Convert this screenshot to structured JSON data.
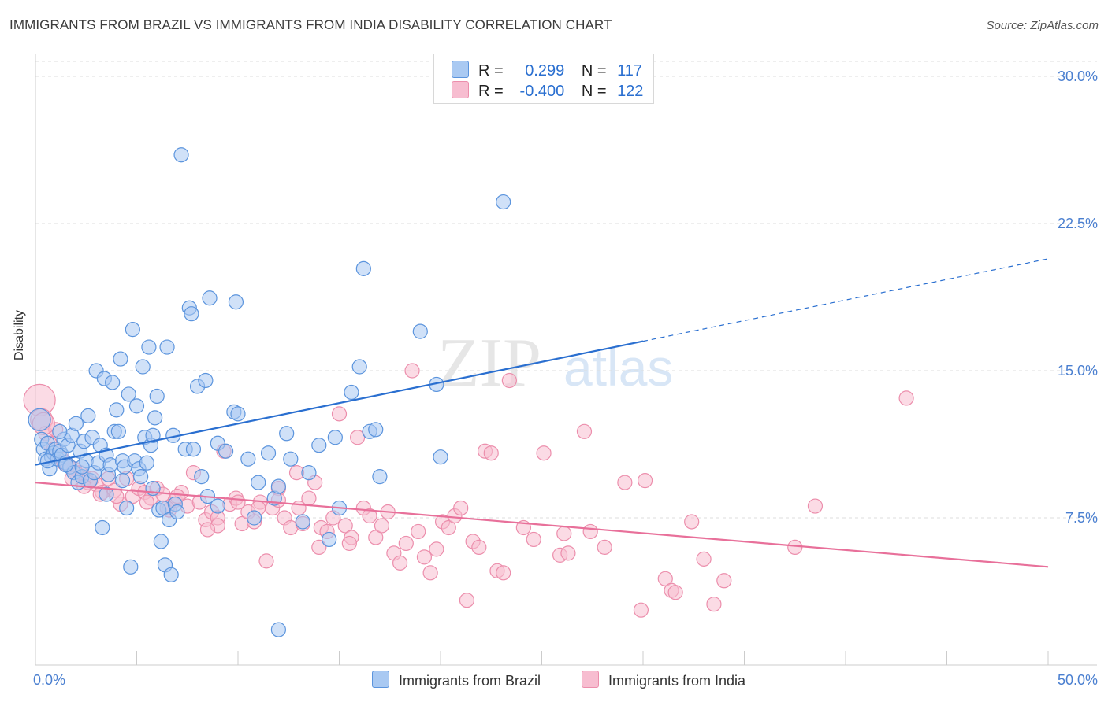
{
  "header": {
    "title": "IMMIGRANTS FROM BRAZIL VS IMMIGRANTS FROM INDIA DISABILITY CORRELATION CHART",
    "source": "Source: ZipAtlas.com"
  },
  "legend": {
    "brazil": {
      "r_label": "R =",
      "r_value": "0.299",
      "n_label": "N =",
      "n_value": "117"
    },
    "india": {
      "r_label": "R =",
      "r_value": "-0.400",
      "n_label": "N =",
      "n_value": "122"
    }
  },
  "watermark": {
    "zip": "ZIP",
    "atlas": "atlas"
  },
  "colors": {
    "brazil_fill": "#a9c9f2",
    "brazil_stroke": "#5b94dd",
    "brazil_line": "#2a6fd0",
    "india_fill": "#f7bdd0",
    "india_stroke": "#ec8eac",
    "india_line": "#e8709a",
    "tick_label": "#4a7fd0",
    "grid": "#dddddd"
  },
  "chart_data": {
    "type": "scatter",
    "title": "IMMIGRANTS FROM BRAZIL VS IMMIGRANTS FROM INDIA DISABILITY CORRELATION CHART",
    "ylabel": "Disability",
    "xlim": [
      0,
      50
    ],
    "ylim": [
      0,
      30
    ],
    "x_tick_labels": [
      "0.0%",
      "50.0%"
    ],
    "y_ticks": [
      7.5,
      15.0,
      22.5,
      30.0
    ],
    "y_tick_labels": [
      "7.5%",
      "15.0%",
      "22.5%",
      "30.0%"
    ],
    "grid": true,
    "legend_position": "top-center",
    "series": [
      {
        "name": "Immigrants from Brazil",
        "r": 0.299,
        "n": 117,
        "trend": {
          "x0": 0,
          "y0": 10.2,
          "x1": 30,
          "y1": 16.5,
          "dashed_to_x": 50,
          "dashed_to_y": 20.7
        },
        "points": [
          [
            0.2,
            12.5
          ],
          [
            0.3,
            11.5
          ],
          [
            0.4,
            11.0
          ],
          [
            0.5,
            10.5
          ],
          [
            0.6,
            11.3
          ],
          [
            0.7,
            10.0
          ],
          [
            0.8,
            10.6
          ],
          [
            0.9,
            10.8
          ],
          [
            1.0,
            11.0
          ],
          [
            1.1,
            10.5
          ],
          [
            1.2,
            10.9
          ],
          [
            1.3,
            10.7
          ],
          [
            1.4,
            11.5
          ],
          [
            1.5,
            10.3
          ],
          [
            1.6,
            11.2
          ],
          [
            1.7,
            10.1
          ],
          [
            1.8,
            11.7
          ],
          [
            1.9,
            9.8
          ],
          [
            2.0,
            12.3
          ],
          [
            2.1,
            9.3
          ],
          [
            2.2,
            10.9
          ],
          [
            2.3,
            9.6
          ],
          [
            2.4,
            11.4
          ],
          [
            2.5,
            10.4
          ],
          [
            2.6,
            12.7
          ],
          [
            2.7,
            9.4
          ],
          [
            2.8,
            11.6
          ],
          [
            2.9,
            9.8
          ],
          [
            3.0,
            15.0
          ],
          [
            3.1,
            10.3
          ],
          [
            3.2,
            11.2
          ],
          [
            3.3,
            7.0
          ],
          [
            3.4,
            14.6
          ],
          [
            3.5,
            10.7
          ],
          [
            3.6,
            9.7
          ],
          [
            3.7,
            10.2
          ],
          [
            3.8,
            14.4
          ],
          [
            3.9,
            11.9
          ],
          [
            4.0,
            13.0
          ],
          [
            4.1,
            11.9
          ],
          [
            4.2,
            15.6
          ],
          [
            4.3,
            10.4
          ],
          [
            4.4,
            10.1
          ],
          [
            4.5,
            8.0
          ],
          [
            4.6,
            13.8
          ],
          [
            4.7,
            5.0
          ],
          [
            4.8,
            17.1
          ],
          [
            4.9,
            10.4
          ],
          [
            5.0,
            13.2
          ],
          [
            5.1,
            10.0
          ],
          [
            5.2,
            9.6
          ],
          [
            5.3,
            15.2
          ],
          [
            5.4,
            11.6
          ],
          [
            5.5,
            10.3
          ],
          [
            5.6,
            16.2
          ],
          [
            5.7,
            11.2
          ],
          [
            5.8,
            11.7
          ],
          [
            5.9,
            12.6
          ],
          [
            6.0,
            13.7
          ],
          [
            6.1,
            7.9
          ],
          [
            6.2,
            6.3
          ],
          [
            6.3,
            8.0
          ],
          [
            6.4,
            5.1
          ],
          [
            6.5,
            16.2
          ],
          [
            6.6,
            7.4
          ],
          [
            6.7,
            4.6
          ],
          [
            6.8,
            11.7
          ],
          [
            6.9,
            8.2
          ],
          [
            7.0,
            7.8
          ],
          [
            7.2,
            26.0
          ],
          [
            7.4,
            11.0
          ],
          [
            7.6,
            18.2
          ],
          [
            7.7,
            17.9
          ],
          [
            7.8,
            11.0
          ],
          [
            8.0,
            14.2
          ],
          [
            8.2,
            9.6
          ],
          [
            8.4,
            14.5
          ],
          [
            8.5,
            8.6
          ],
          [
            8.6,
            18.7
          ],
          [
            9.0,
            11.3
          ],
          [
            9.4,
            10.9
          ],
          [
            9.8,
            12.9
          ],
          [
            9.9,
            18.5
          ],
          [
            10.0,
            12.8
          ],
          [
            10.5,
            10.5
          ],
          [
            11.0,
            9.3
          ],
          [
            11.5,
            10.8
          ],
          [
            11.8,
            8.5
          ],
          [
            12.0,
            1.8
          ],
          [
            12.0,
            9.1
          ],
          [
            12.4,
            11.8
          ],
          [
            12.6,
            10.5
          ],
          [
            13.5,
            9.8
          ],
          [
            14.0,
            11.2
          ],
          [
            14.5,
            6.4
          ],
          [
            14.8,
            11.6
          ],
          [
            15.6,
            13.9
          ],
          [
            16.0,
            15.2
          ],
          [
            16.2,
            20.2
          ],
          [
            16.5,
            11.9
          ],
          [
            16.8,
            12.0
          ],
          [
            17.0,
            9.6
          ],
          [
            19.0,
            17.0
          ],
          [
            19.8,
            14.3
          ],
          [
            23.1,
            23.6
          ],
          [
            20.0,
            10.6
          ],
          [
            15.0,
            8.0
          ],
          [
            13.2,
            7.3
          ],
          [
            10.8,
            7.5
          ],
          [
            9.0,
            8.1
          ],
          [
            5.8,
            9.0
          ],
          [
            4.3,
            9.4
          ],
          [
            3.5,
            8.7
          ],
          [
            2.3,
            10.1
          ],
          [
            1.5,
            10.2
          ],
          [
            0.6,
            10.4
          ],
          [
            1.2,
            11.9
          ]
        ]
      },
      {
        "name": "Immigrants from India",
        "r": -0.4,
        "n": 122,
        "trend": {
          "x0": 0,
          "y0": 9.3,
          "x1": 50,
          "y1": 5.0
        },
        "points": [
          [
            0.2,
            13.5
          ],
          [
            0.3,
            12.5
          ],
          [
            0.5,
            11.8
          ],
          [
            0.7,
            11.3
          ],
          [
            1.0,
            12.0
          ],
          [
            1.3,
            10.5
          ],
          [
            1.6,
            10.2
          ],
          [
            1.9,
            10.0
          ],
          [
            2.2,
            9.8
          ],
          [
            2.5,
            9.5
          ],
          [
            2.8,
            9.5
          ],
          [
            3.0,
            9.2
          ],
          [
            3.3,
            8.8
          ],
          [
            3.6,
            9.5
          ],
          [
            3.9,
            8.9
          ],
          [
            4.2,
            8.2
          ],
          [
            4.5,
            9.5
          ],
          [
            4.8,
            8.6
          ],
          [
            5.1,
            9.0
          ],
          [
            5.4,
            8.8
          ],
          [
            5.7,
            8.5
          ],
          [
            6.0,
            9.0
          ],
          [
            6.3,
            8.7
          ],
          [
            6.6,
            7.9
          ],
          [
            6.9,
            8.4
          ],
          [
            7.2,
            8.8
          ],
          [
            7.5,
            8.1
          ],
          [
            7.8,
            9.8
          ],
          [
            8.1,
            8.3
          ],
          [
            8.4,
            7.4
          ],
          [
            8.7,
            7.8
          ],
          [
            9.0,
            7.5
          ],
          [
            9.3,
            10.9
          ],
          [
            9.6,
            8.2
          ],
          [
            9.9,
            8.5
          ],
          [
            10.2,
            7.2
          ],
          [
            10.5,
            7.8
          ],
          [
            10.8,
            7.3
          ],
          [
            11.1,
            8.3
          ],
          [
            11.4,
            5.3
          ],
          [
            11.7,
            8.0
          ],
          [
            12.0,
            9.0
          ],
          [
            12.3,
            7.5
          ],
          [
            12.6,
            7.0
          ],
          [
            12.9,
            9.8
          ],
          [
            13.2,
            7.2
          ],
          [
            13.5,
            8.5
          ],
          [
            13.8,
            9.3
          ],
          [
            14.1,
            7.0
          ],
          [
            14.4,
            6.8
          ],
          [
            14.7,
            7.5
          ],
          [
            15.0,
            12.8
          ],
          [
            15.3,
            7.1
          ],
          [
            15.6,
            6.5
          ],
          [
            15.9,
            11.6
          ],
          [
            16.2,
            8.0
          ],
          [
            16.5,
            7.6
          ],
          [
            16.8,
            6.5
          ],
          [
            17.1,
            7.1
          ],
          [
            17.4,
            7.8
          ],
          [
            17.7,
            5.7
          ],
          [
            18.0,
            5.2
          ],
          [
            18.3,
            6.2
          ],
          [
            18.6,
            15.0
          ],
          [
            18.9,
            6.8
          ],
          [
            19.2,
            5.5
          ],
          [
            19.5,
            4.7
          ],
          [
            19.8,
            5.9
          ],
          [
            20.1,
            7.3
          ],
          [
            20.4,
            7.0
          ],
          [
            20.7,
            7.6
          ],
          [
            21.0,
            8.0
          ],
          [
            21.3,
            3.3
          ],
          [
            21.6,
            6.3
          ],
          [
            21.9,
            6.0
          ],
          [
            22.2,
            10.9
          ],
          [
            22.5,
            10.8
          ],
          [
            22.8,
            4.8
          ],
          [
            23.1,
            4.7
          ],
          [
            23.4,
            14.5
          ],
          [
            24.1,
            7.0
          ],
          [
            24.6,
            6.4
          ],
          [
            25.1,
            10.8
          ],
          [
            26.1,
            6.7
          ],
          [
            27.1,
            11.9
          ],
          [
            27.4,
            6.8
          ],
          [
            28.1,
            6.0
          ],
          [
            29.1,
            9.3
          ],
          [
            30.1,
            9.4
          ],
          [
            31.1,
            4.4
          ],
          [
            31.4,
            3.8
          ],
          [
            32.4,
            7.3
          ],
          [
            33.5,
            3.1
          ],
          [
            34.0,
            4.3
          ],
          [
            37.5,
            6.0
          ],
          [
            38.5,
            8.1
          ],
          [
            43.0,
            13.6
          ],
          [
            25.9,
            5.6
          ],
          [
            26.3,
            5.7
          ],
          [
            29.9,
            2.8
          ],
          [
            31.6,
            3.7
          ],
          [
            33.0,
            5.4
          ],
          [
            15.5,
            6.2
          ],
          [
            14.0,
            6.0
          ],
          [
            13.0,
            8.0
          ],
          [
            12.0,
            8.4
          ],
          [
            11.0,
            8.0
          ],
          [
            10.0,
            8.3
          ],
          [
            9.0,
            7.1
          ],
          [
            8.5,
            6.9
          ],
          [
            7.0,
            8.6
          ],
          [
            6.5,
            8.0
          ],
          [
            5.5,
            8.3
          ],
          [
            4.0,
            8.6
          ],
          [
            3.2,
            8.7
          ],
          [
            2.6,
            9.3
          ],
          [
            2.0,
            9.8
          ],
          [
            1.4,
            10.3
          ],
          [
            0.9,
            11.0
          ],
          [
            0.4,
            12.3
          ],
          [
            1.8,
            9.5
          ],
          [
            2.4,
            9.1
          ]
        ]
      }
    ]
  },
  "bottom_legend": {
    "brazil_label": "Immigrants from Brazil",
    "india_label": "Immigrants from India"
  }
}
